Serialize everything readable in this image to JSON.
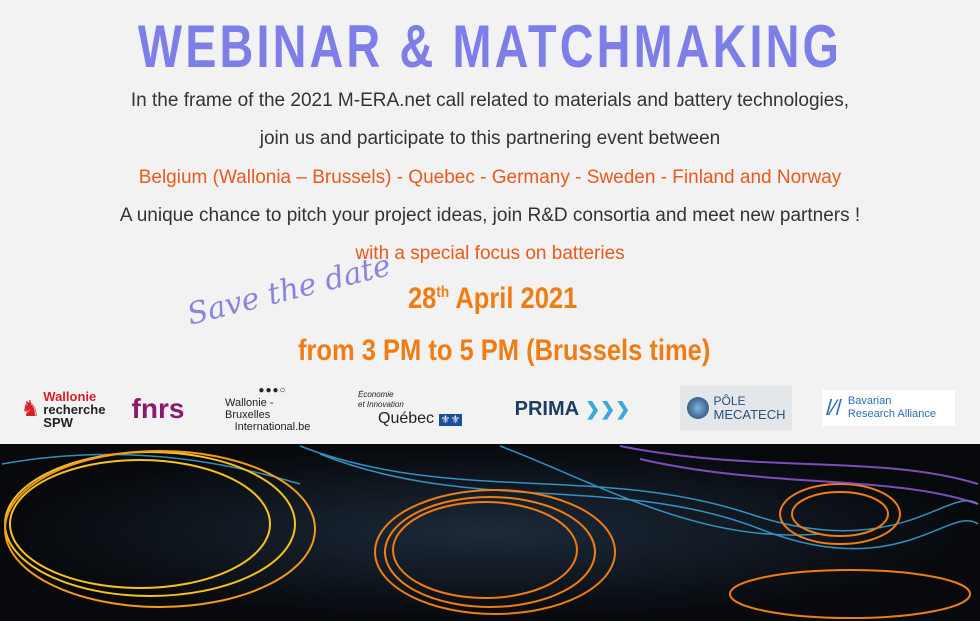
{
  "title": "WEBINAR & MATCHMAKING",
  "lines": [
    "In the frame of the 2021 M-ERA.net call related  to materials and battery technologies,",
    "join us and participate to this partnering event between",
    "Belgium (Wallonia – Brussels) - Quebec - Germany - Sweden - Finland and Norway",
    "A unique chance to pitch your project ideas, join R&D consortia and meet new partners !",
    "with a special focus on batteries"
  ],
  "save_the_date": "Save the date",
  "date": {
    "day": "28",
    "suffix": "th",
    "rest": " April 2021"
  },
  "time": "from 3 PM to 5 PM (Brussels time)",
  "logos": {
    "wallonie": [
      "Wallonie",
      "recherche",
      "SPW"
    ],
    "fnrs": "fnrs",
    "wbi": [
      "Wallonie - Bruxelles",
      "International.be"
    ],
    "quebec": [
      "Économie",
      "et Innovation",
      "Québec"
    ],
    "prima": "PRIMA",
    "mecatech": [
      "PÔLE",
      "MECATECH"
    ],
    "bavarian": [
      "Bavarian",
      "Research Alliance"
    ]
  },
  "colors": {
    "title": "#7e7ee8",
    "highlight": "#e95a1c",
    "date": "#f07d14"
  }
}
